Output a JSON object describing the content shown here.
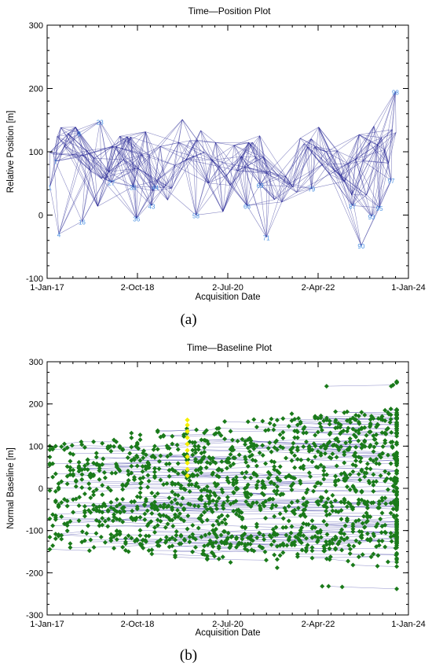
{
  "chart_data": [
    {
      "type": "line",
      "title": "Time—Position Plot",
      "xlabel": "Acquisition Date",
      "ylabel": "Relative Position [m]",
      "panel_label": "(a)",
      "x_tick_labels": [
        "1-Jan-17",
        "2-Oct-18",
        "2-Jul-20",
        "2-Apr-22",
        "1-Jan-24"
      ],
      "y_tick_labels": [
        "-100",
        "0",
        "100",
        "200",
        "300"
      ],
      "xlim": [
        "2017-01-01",
        "2024-01-01"
      ],
      "ylim": [
        -100,
        300
      ],
      "line_color": "#1c1c8f",
      "label_color": "#4a90e2",
      "nodes": [
        {
          "label": "1",
          "date": "2017-01-21",
          "y": 45
        },
        {
          "label": "4",
          "date": "2017-03-25",
          "y": -30
        },
        {
          "label": "7",
          "date": "2017-03-01",
          "y": 85
        },
        {
          "label": "9",
          "date": "2017-08-15",
          "y": 130
        },
        {
          "label": "16",
          "date": "2017-09-05",
          "y": -10
        },
        {
          "label": "23",
          "date": "2018-01-10",
          "y": 148
        },
        {
          "label": "27",
          "date": "2018-04-01",
          "y": 52
        },
        {
          "label": "35",
          "date": "2018-09-01",
          "y": 45
        },
        {
          "label": "36",
          "date": "2018-09-25",
          "y": -5
        },
        {
          "label": "43",
          "date": "2019-01-10",
          "y": 15
        },
        {
          "label": "44",
          "date": "2019-02-05",
          "y": 45
        },
        {
          "label": "58",
          "date": "2019-11-20",
          "y": 0
        },
        {
          "label": "66",
          "date": "2020-11-15",
          "y": 15
        },
        {
          "label": "69",
          "date": "2021-02-15",
          "y": 48
        },
        {
          "label": "71",
          "date": "2021-04-01",
          "y": -35
        },
        {
          "label": "79",
          "date": "2022-02-15",
          "y": 42
        },
        {
          "label": "87",
          "date": "2022-12-01",
          "y": 15
        },
        {
          "label": "90",
          "date": "2023-02-01",
          "y": -48
        },
        {
          "label": "93",
          "date": "2023-04-15",
          "y": -2
        },
        {
          "label": "95",
          "date": "2023-06-10",
          "y": 12
        },
        {
          "label": "97",
          "date": "2023-09-01",
          "y": 55
        },
        {
          "label": "98",
          "date": "2023-10-01",
          "y": 195
        }
      ]
    },
    {
      "type": "scatter",
      "title": "Time—Baseline Plot",
      "xlabel": "Acquisition Date",
      "ylabel": "Normal Baseline [m]",
      "panel_label": "(b)",
      "x_tick_labels": [
        "1-Jan-17",
        "2-Oct-18",
        "2-Jul-20",
        "2-Apr-22",
        "1-Jan-24"
      ],
      "y_tick_labels": [
        "-300",
        "-200",
        "-100",
        "0",
        "100",
        "200",
        "300"
      ],
      "xlim": [
        "2017-01-01",
        "2024-01-01"
      ],
      "ylim": [
        -300,
        300
      ],
      "marker_color": "#1a7a1a",
      "highlight_color": "#f5f000",
      "line_color": "#2f2f9c",
      "highlight_points": [
        {
          "date": "2019-09-20",
          "y": 30
        },
        {
          "date": "2019-09-20",
          "y": 45
        },
        {
          "date": "2019-09-20",
          "y": 60
        },
        {
          "date": "2019-09-20",
          "y": 75
        },
        {
          "date": "2019-09-20",
          "y": 90
        },
        {
          "date": "2019-09-20",
          "y": 105
        },
        {
          "date": "2019-09-20",
          "y": 120
        },
        {
          "date": "2019-09-20",
          "y": 135
        },
        {
          "date": "2019-09-20",
          "y": 150
        },
        {
          "date": "2019-09-20",
          "y": 162
        }
      ]
    }
  ]
}
